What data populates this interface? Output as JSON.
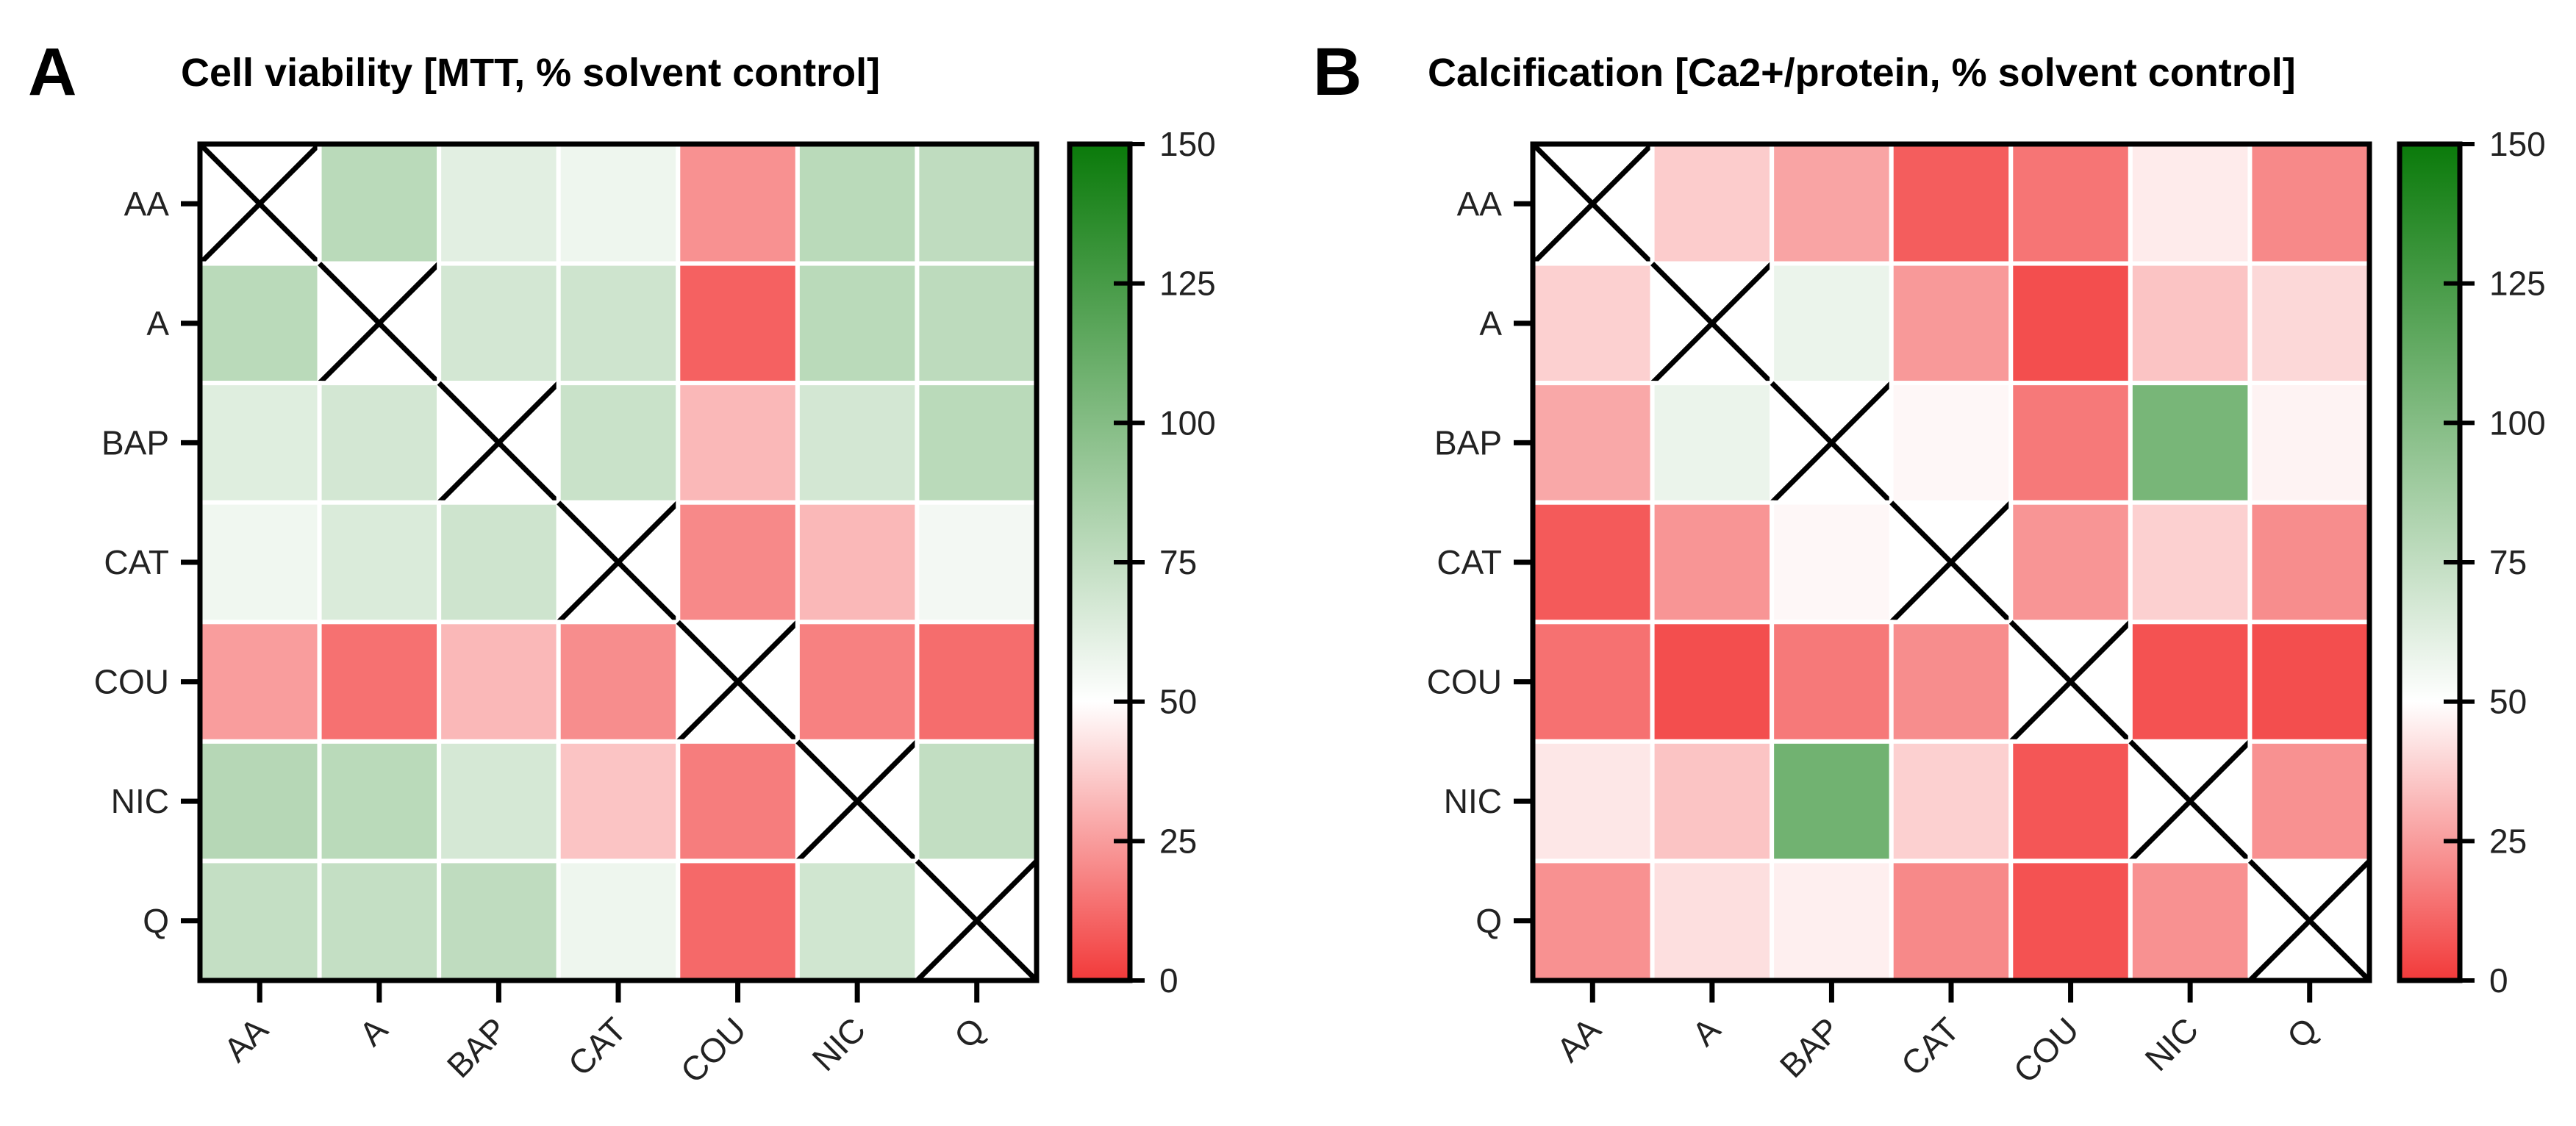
{
  "panels": [
    {
      "letter": "A",
      "title": "Cell viability [MTT, % solvent control]"
    },
    {
      "letter": "B",
      "title": "Calcification [Ca2+/protein, % solvent control]"
    }
  ],
  "colors": {
    "low": "#f23a3a",
    "mid": "#ffffff",
    "high": "#0a7a0a",
    "cell_border": "#ffffff",
    "frame": "#000000"
  },
  "chart_data": [
    {
      "type": "heatmap",
      "title": "Cell viability [MTT, % solvent control]",
      "rows": [
        "AA",
        "A",
        "BAP",
        "CAT",
        "COU",
        "NIC",
        "Q"
      ],
      "columns": [
        "AA",
        "A",
        "BAP",
        "CAT",
        "COU",
        "NIC",
        "Q"
      ],
      "values": [
        [
          null,
          78,
          62,
          57,
          22,
          78,
          76
        ],
        [
          78,
          null,
          68,
          70,
          10,
          78,
          77
        ],
        [
          63,
          68,
          null,
          72,
          32,
          68,
          78
        ],
        [
          56,
          65,
          70,
          null,
          20,
          32,
          55
        ],
        [
          25,
          14,
          32,
          21,
          null,
          18,
          13
        ],
        [
          80,
          78,
          67,
          35,
          17,
          null,
          75
        ],
        [
          74,
          74,
          76,
          57,
          12,
          69,
          null
        ]
      ],
      "colorbar": {
        "min": 0,
        "max": 150,
        "center": 50,
        "ticks": [
          0,
          25,
          50,
          75,
          100,
          125,
          150
        ]
      }
    },
    {
      "type": "heatmap",
      "title": "Calcification [Ca2+/protein, % solvent control]",
      "rows": [
        "AA",
        "A",
        "BAP",
        "CAT",
        "COU",
        "NIC",
        "Q"
      ],
      "columns": [
        "AA",
        "A",
        "BAP",
        "CAT",
        "COU",
        "NIC",
        "Q"
      ],
      "values": [
        [
          null,
          37,
          27,
          9,
          15,
          45,
          20
        ],
        [
          38,
          null,
          58,
          24,
          5,
          35,
          40
        ],
        [
          28,
          58,
          null,
          48,
          16,
          105,
          47
        ],
        [
          8,
          23,
          48,
          null,
          23,
          38,
          21
        ],
        [
          14,
          5,
          16,
          21,
          null,
          6,
          5
        ],
        [
          44,
          35,
          108,
          38,
          7,
          null,
          22
        ],
        [
          22,
          42,
          46,
          20,
          6,
          22,
          null
        ]
      ],
      "colorbar": {
        "min": 0,
        "max": 150,
        "center": 50,
        "ticks": [
          0,
          25,
          50,
          75,
          100,
          125,
          150
        ]
      }
    }
  ]
}
